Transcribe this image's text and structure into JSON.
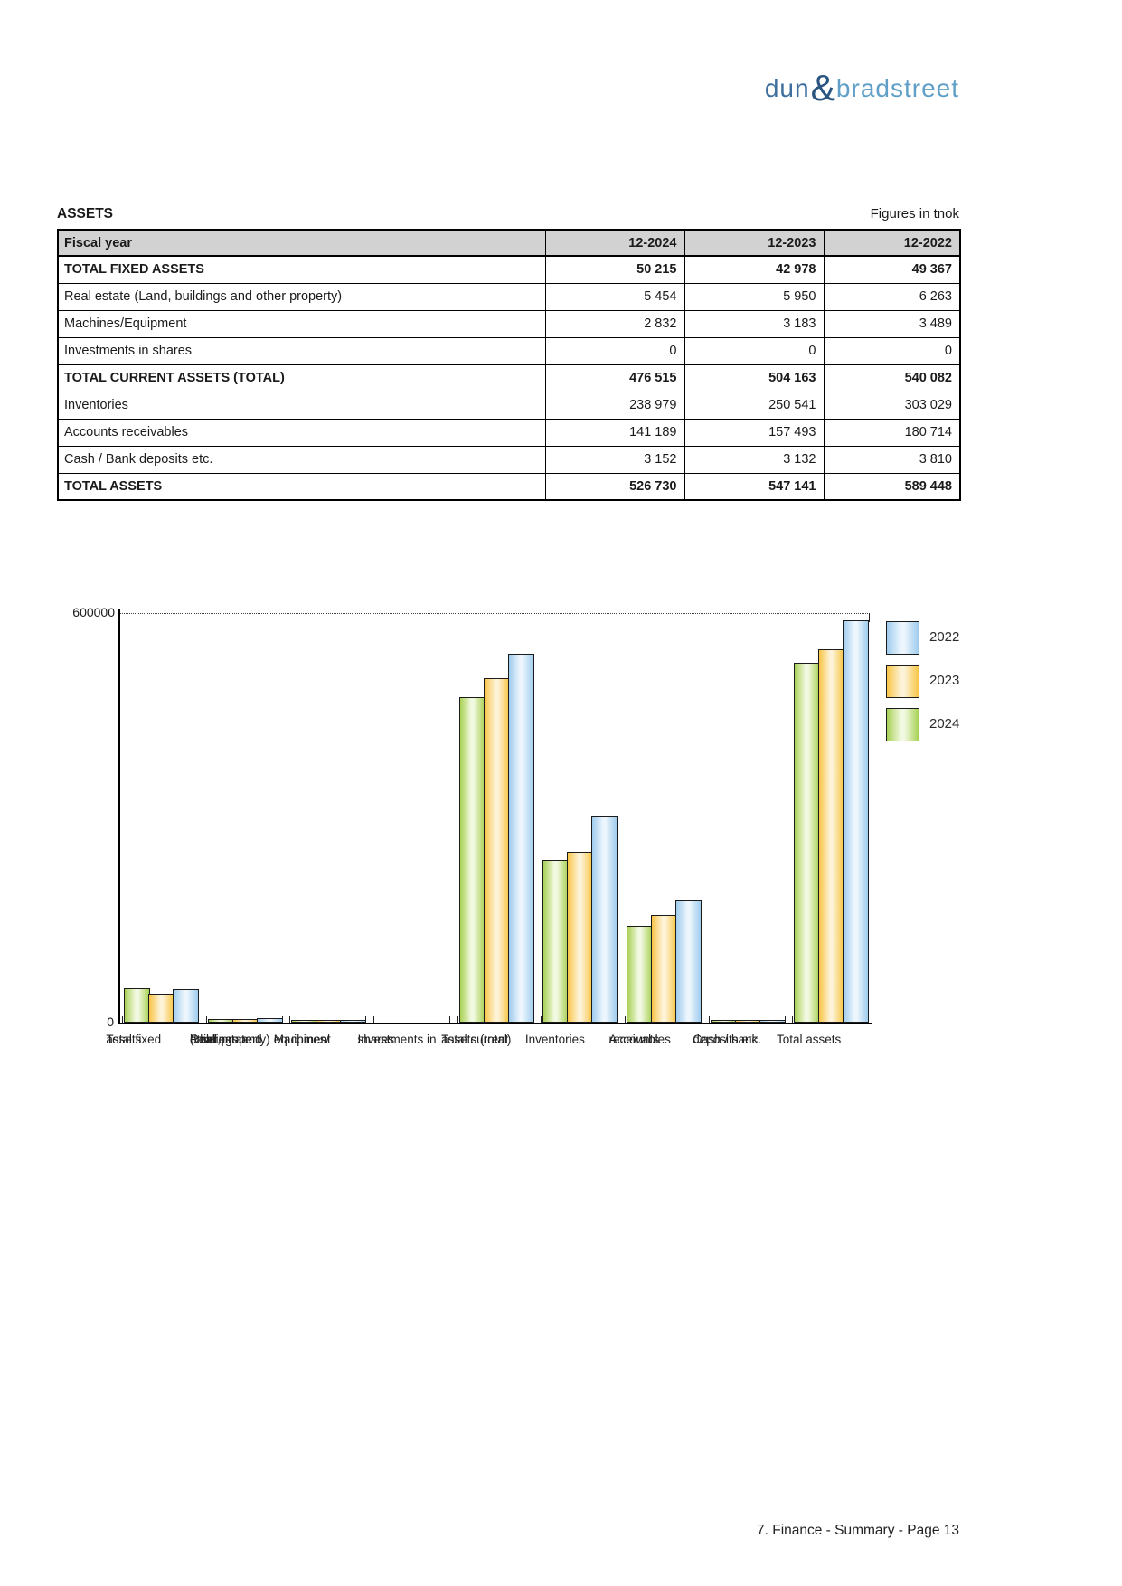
{
  "logo": {
    "word1": "dun",
    "amp": "&",
    "word2": "bradstreet",
    "colors": {
      "word1": "#3f6f9e",
      "amp": "#2a5580",
      "word2": "#60a0c8"
    }
  },
  "page": {
    "heading": "ASSETS",
    "units_note": "Figures in tnok",
    "footer": "7. Finance - Summary - Page 13"
  },
  "table": {
    "header_label": "Fiscal year",
    "columns": [
      "12-2024",
      "12-2023",
      "12-2022"
    ],
    "rows": [
      {
        "label": "TOTAL FIXED ASSETS",
        "values": [
          "50 215",
          "42 978",
          "49 367"
        ],
        "bold": true
      },
      {
        "label": "Real estate (Land, buildings and other property)",
        "values": [
          "5 454",
          "5 950",
          "6 263"
        ],
        "bold": false
      },
      {
        "label": "Machines/Equipment",
        "values": [
          "2 832",
          "3 183",
          "3 489"
        ],
        "bold": false
      },
      {
        "label": "Investments in shares",
        "values": [
          "0",
          "0",
          "0"
        ],
        "bold": false
      },
      {
        "label": "TOTAL CURRENT ASSETS (TOTAL)",
        "values": [
          "476 515",
          "504 163",
          "540 082"
        ],
        "bold": true
      },
      {
        "label": "Inventories",
        "values": [
          "238 979",
          "250 541",
          "303 029"
        ],
        "bold": false
      },
      {
        "label": "Accounts receivables",
        "values": [
          "141 189",
          "157 493",
          "180 714"
        ],
        "bold": false
      },
      {
        "label": "Cash / Bank deposits etc.",
        "values": [
          "3 152",
          "3 132",
          "3 810"
        ],
        "bold": false
      },
      {
        "label": "TOTAL ASSETS",
        "values": [
          "526 730",
          "547 141",
          "589 448"
        ],
        "bold": true
      }
    ]
  },
  "chart_data": {
    "type": "bar",
    "title": "",
    "xlabel": "",
    "ylabel": "",
    "ylim": [
      0,
      600000
    ],
    "yticks": [
      0,
      600000
    ],
    "ytick_labels": [
      "0",
      "600000"
    ],
    "grid": "dotted line at 600000 only",
    "legend_position": "top-right",
    "legend_order": [
      "2022",
      "2023",
      "2024"
    ],
    "categories": [
      "Total fixed assets",
      "Real estate (land, buildings and other property)",
      "Machines/ equipment",
      "Investments in shares",
      "Total current assets (total)",
      "Inventories",
      "Accounts receivables",
      "Cash / bank deposits etc.",
      "Total assets"
    ],
    "category_label_lines": [
      [
        "Total fixed",
        "assets"
      ],
      [
        "Real estate",
        "(land,",
        "buildings and",
        "other property)"
      ],
      [
        "Machines/",
        "equipment"
      ],
      [
        "Investments in",
        "shares"
      ],
      [
        "Total current",
        "assets (total)"
      ],
      [
        "Inventories"
      ],
      [
        "Accounts",
        "receivables"
      ],
      [
        "Cash / bank",
        "deposits etc."
      ],
      [
        "Total assets"
      ]
    ],
    "series": [
      {
        "name": "2024",
        "edge_color": "#a8d154",
        "center_color": "#f2f9e2",
        "values": [
          50215,
          5454,
          2832,
          0,
          476515,
          238979,
          141189,
          3152,
          526730
        ]
      },
      {
        "name": "2023",
        "edge_color": "#f8c545",
        "center_color": "#fdf3d8",
        "values": [
          42978,
          5950,
          3183,
          0,
          504163,
          250541,
          157493,
          3132,
          547141
        ]
      },
      {
        "name": "2022",
        "edge_color": "#9fccee",
        "center_color": "#edf6fd",
        "values": [
          49367,
          6263,
          3489,
          0,
          540082,
          303029,
          180714,
          3810,
          589448
        ]
      }
    ]
  }
}
